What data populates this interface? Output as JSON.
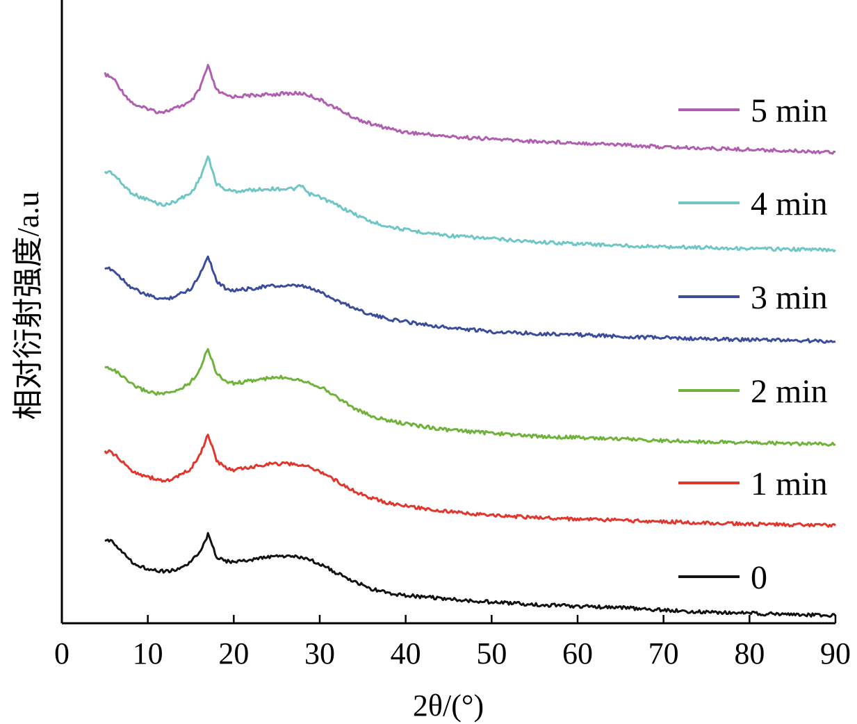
{
  "chart_data": {
    "type": "line",
    "xlabel": "2θ/(°)",
    "ylabel": "相对衍射强度/a.u",
    "xlim": [
      0,
      90
    ],
    "xticks": [
      "0",
      "10",
      "20",
      "30",
      "40",
      "50",
      "60",
      "70",
      "80",
      "90"
    ],
    "grid": false,
    "legend_position": "right",
    "series": [
      {
        "name": "5 min",
        "color": "#b05fb0",
        "values": [
          [
            5,
            0.881
          ],
          [
            5.5,
            0.877
          ],
          [
            6,
            0.874
          ],
          [
            7,
            0.854
          ],
          [
            8,
            0.837
          ],
          [
            9,
            0.828
          ],
          [
            10,
            0.826
          ],
          [
            11,
            0.821
          ],
          [
            12,
            0.821
          ],
          [
            13,
            0.825
          ],
          [
            14,
            0.831
          ],
          [
            15,
            0.836
          ],
          [
            16,
            0.856
          ],
          [
            16.5,
            0.876
          ],
          [
            17,
            0.894
          ],
          [
            17.5,
            0.874
          ],
          [
            18,
            0.855
          ],
          [
            19,
            0.847
          ],
          [
            20,
            0.845
          ],
          [
            22,
            0.847
          ],
          [
            24,
            0.848
          ],
          [
            26,
            0.85
          ],
          [
            28,
            0.85
          ],
          [
            29,
            0.846
          ],
          [
            30,
            0.84
          ],
          [
            32,
            0.826
          ],
          [
            34,
            0.811
          ],
          [
            36,
            0.801
          ],
          [
            38,
            0.794
          ],
          [
            40,
            0.788
          ],
          [
            45,
            0.781
          ],
          [
            50,
            0.777
          ],
          [
            55,
            0.773
          ],
          [
            60,
            0.771
          ],
          [
            65,
            0.768
          ],
          [
            70,
            0.764
          ],
          [
            75,
            0.762
          ],
          [
            80,
            0.76
          ],
          [
            85,
            0.758
          ],
          [
            90,
            0.756
          ]
        ]
      },
      {
        "name": "4 min",
        "color": "#6fc6c6",
        "values": [
          [
            5,
            0.723
          ],
          [
            5.5,
            0.725
          ],
          [
            6,
            0.721
          ],
          [
            7,
            0.705
          ],
          [
            8,
            0.692
          ],
          [
            9,
            0.684
          ],
          [
            10,
            0.68
          ],
          [
            11,
            0.674
          ],
          [
            12,
            0.671
          ],
          [
            13,
            0.676
          ],
          [
            14,
            0.683
          ],
          [
            15,
            0.69
          ],
          [
            16,
            0.712
          ],
          [
            16.5,
            0.73
          ],
          [
            17,
            0.749
          ],
          [
            17.5,
            0.726
          ],
          [
            18,
            0.705
          ],
          [
            19,
            0.696
          ],
          [
            20,
            0.693
          ],
          [
            22,
            0.695
          ],
          [
            24,
            0.697
          ],
          [
            26,
            0.697
          ],
          [
            27,
            0.697
          ],
          [
            28,
            0.702
          ],
          [
            28.5,
            0.69
          ],
          [
            30,
            0.684
          ],
          [
            32,
            0.671
          ],
          [
            34,
            0.657
          ],
          [
            36,
            0.644
          ],
          [
            38,
            0.637
          ],
          [
            40,
            0.631
          ],
          [
            45,
            0.622
          ],
          [
            50,
            0.617
          ],
          [
            55,
            0.612
          ],
          [
            60,
            0.609
          ],
          [
            65,
            0.606
          ],
          [
            70,
            0.604
          ],
          [
            75,
            0.603
          ],
          [
            80,
            0.601
          ],
          [
            85,
            0.6
          ],
          [
            90,
            0.599
          ]
        ]
      },
      {
        "name": "3 min",
        "color": "#3b4c9c",
        "values": [
          [
            5,
            0.566
          ],
          [
            5.5,
            0.57
          ],
          [
            6,
            0.566
          ],
          [
            7,
            0.553
          ],
          [
            8,
            0.54
          ],
          [
            9,
            0.532
          ],
          [
            10,
            0.526
          ],
          [
            11,
            0.522
          ],
          [
            12,
            0.52
          ],
          [
            13,
            0.524
          ],
          [
            14,
            0.53
          ],
          [
            15,
            0.537
          ],
          [
            16,
            0.558
          ],
          [
            16.5,
            0.574
          ],
          [
            17,
            0.59
          ],
          [
            17.5,
            0.57
          ],
          [
            18,
            0.549
          ],
          [
            19,
            0.538
          ],
          [
            20,
            0.534
          ],
          [
            22,
            0.537
          ],
          [
            24,
            0.541
          ],
          [
            26,
            0.541
          ],
          [
            28,
            0.541
          ],
          [
            30,
            0.532
          ],
          [
            32,
            0.518
          ],
          [
            34,
            0.506
          ],
          [
            36,
            0.495
          ],
          [
            38,
            0.488
          ],
          [
            40,
            0.484
          ],
          [
            45,
            0.474
          ],
          [
            50,
            0.468
          ],
          [
            55,
            0.465
          ],
          [
            60,
            0.463
          ],
          [
            65,
            0.46
          ],
          [
            70,
            0.458
          ],
          [
            75,
            0.456
          ],
          [
            80,
            0.455
          ],
          [
            85,
            0.454
          ],
          [
            90,
            0.452
          ]
        ]
      },
      {
        "name": "2 min",
        "color": "#6fb23a",
        "values": [
          [
            5,
            0.41
          ],
          [
            5.5,
            0.41
          ],
          [
            6,
            0.407
          ],
          [
            7,
            0.396
          ],
          [
            8,
            0.384
          ],
          [
            9,
            0.377
          ],
          [
            10,
            0.372
          ],
          [
            11,
            0.369
          ],
          [
            12,
            0.368
          ],
          [
            13,
            0.371
          ],
          [
            14,
            0.378
          ],
          [
            15,
            0.387
          ],
          [
            16,
            0.406
          ],
          [
            16.5,
            0.424
          ],
          [
            17,
            0.44
          ],
          [
            17.5,
            0.422
          ],
          [
            18,
            0.4
          ],
          [
            19,
            0.389
          ],
          [
            20,
            0.385
          ],
          [
            22,
            0.389
          ],
          [
            24,
            0.393
          ],
          [
            26,
            0.395
          ],
          [
            28,
            0.39
          ],
          [
            30,
            0.38
          ],
          [
            32,
            0.363
          ],
          [
            34,
            0.345
          ],
          [
            36,
            0.332
          ],
          [
            38,
            0.325
          ],
          [
            40,
            0.32
          ],
          [
            45,
            0.31
          ],
          [
            50,
            0.305
          ],
          [
            55,
            0.3
          ],
          [
            60,
            0.298
          ],
          [
            65,
            0.296
          ],
          [
            70,
            0.293
          ],
          [
            75,
            0.291
          ],
          [
            80,
            0.29
          ],
          [
            85,
            0.288
          ],
          [
            90,
            0.287
          ]
        ]
      },
      {
        "name": "1 min",
        "color": "#e2352c",
        "values": [
          [
            5,
            0.275
          ],
          [
            5.5,
            0.275
          ],
          [
            6,
            0.272
          ],
          [
            7,
            0.259
          ],
          [
            8,
            0.246
          ],
          [
            9,
            0.24
          ],
          [
            10,
            0.235
          ],
          [
            11,
            0.231
          ],
          [
            12,
            0.228
          ],
          [
            13,
            0.232
          ],
          [
            14,
            0.239
          ],
          [
            15,
            0.248
          ],
          [
            16,
            0.269
          ],
          [
            16.5,
            0.285
          ],
          [
            17,
            0.303
          ],
          [
            17.5,
            0.283
          ],
          [
            18,
            0.26
          ],
          [
            19,
            0.25
          ],
          [
            20,
            0.246
          ],
          [
            22,
            0.25
          ],
          [
            24,
            0.256
          ],
          [
            26,
            0.256
          ],
          [
            28,
            0.254
          ],
          [
            30,
            0.244
          ],
          [
            32,
            0.228
          ],
          [
            34,
            0.212
          ],
          [
            36,
            0.201
          ],
          [
            38,
            0.193
          ],
          [
            40,
            0.188
          ],
          [
            45,
            0.179
          ],
          [
            50,
            0.173
          ],
          [
            55,
            0.17
          ],
          [
            60,
            0.167
          ],
          [
            65,
            0.165
          ],
          [
            70,
            0.163
          ],
          [
            75,
            0.161
          ],
          [
            80,
            0.159
          ],
          [
            85,
            0.158
          ],
          [
            90,
            0.157
          ]
        ]
      },
      {
        "name": "0",
        "color": "#111111",
        "values": [
          [
            5,
            0.13
          ],
          [
            5.5,
            0.133
          ],
          [
            6,
            0.13
          ],
          [
            7,
            0.116
          ],
          [
            8,
            0.1
          ],
          [
            9,
            0.092
          ],
          [
            10,
            0.088
          ],
          [
            11,
            0.085
          ],
          [
            12,
            0.083
          ],
          [
            13,
            0.085
          ],
          [
            14,
            0.09
          ],
          [
            15,
            0.097
          ],
          [
            16,
            0.115
          ],
          [
            16.5,
            0.128
          ],
          [
            17,
            0.142
          ],
          [
            17.5,
            0.125
          ],
          [
            18,
            0.107
          ],
          [
            19,
            0.1
          ],
          [
            20,
            0.098
          ],
          [
            22,
            0.102
          ],
          [
            24,
            0.106
          ],
          [
            26,
            0.108
          ],
          [
            28,
            0.105
          ],
          [
            30,
            0.096
          ],
          [
            32,
            0.08
          ],
          [
            34,
            0.067
          ],
          [
            36,
            0.055
          ],
          [
            38,
            0.048
          ],
          [
            40,
            0.045
          ],
          [
            45,
            0.039
          ],
          [
            50,
            0.034
          ],
          [
            55,
            0.03
          ],
          [
            60,
            0.027
          ],
          [
            65,
            0.025
          ],
          [
            70,
            0.021
          ],
          [
            75,
            0.018
          ],
          [
            80,
            0.016
          ],
          [
            85,
            0.014
          ],
          [
            90,
            0.012
          ]
        ]
      }
    ]
  }
}
